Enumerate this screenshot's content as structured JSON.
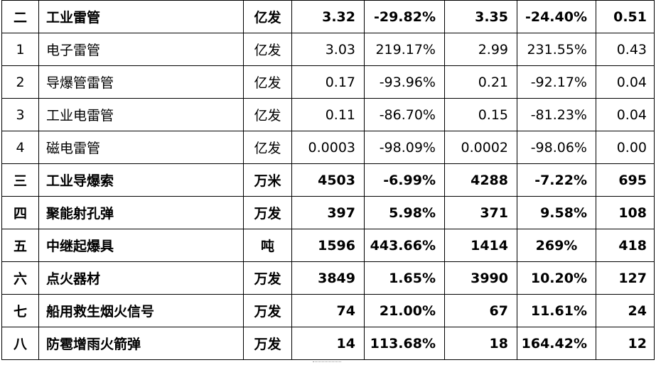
{
  "rows": [
    {
      "idx": "二",
      "name": "工业雷管",
      "unit": "亿发",
      "v1": "3.32",
      "g1": "-29.82%",
      "v2": "3.35",
      "g2": "-24.40%",
      "v3": "0.51",
      "bold": true
    },
    {
      "idx": "1",
      "name": "电子雷管",
      "unit": "亿发",
      "v1": "3.03",
      "g1": "219.17%",
      "v2": "2.99",
      "g2": "231.55%",
      "v3": "0.43",
      "bold": false
    },
    {
      "idx": "2",
      "name": "导爆管雷管",
      "unit": "亿发",
      "v1": "0.17",
      "g1": "-93.96%",
      "v2": "0.21",
      "g2": "-92.17%",
      "v3": "0.04",
      "bold": false
    },
    {
      "idx": "3",
      "name": "工业电雷管",
      "unit": "亿发",
      "v1": "0.11",
      "g1": "-86.70%",
      "v2": "0.15",
      "g2": "-81.23%",
      "v3": "0.04",
      "bold": false
    },
    {
      "idx": "4",
      "name": "磁电雷管",
      "unit": "亿发",
      "v1": "0.0003",
      "g1": "-98.09%",
      "v2": "0.0002",
      "g2": "-98.06%",
      "v3": "0.00",
      "bold": false
    },
    {
      "idx": "三",
      "name": "工业导爆索",
      "unit": "万米",
      "v1": "4503",
      "g1": "-6.99%",
      "v2": "4288",
      "g2": "-7.22%",
      "v3": "695",
      "bold": true
    },
    {
      "idx": "四",
      "name": "聚能射孔弹",
      "unit": "万发",
      "v1": "397",
      "g1": "5.98%",
      "v2": "371",
      "g2": "9.58%",
      "v3": "108",
      "bold": true
    },
    {
      "idx": "五",
      "name": "中继起爆具",
      "unit": "吨",
      "v1": "1596",
      "g1": "443.66%",
      "v2": "1414",
      "g2": "269%",
      "v3": "418",
      "bold": true,
      "centerG2": true
    },
    {
      "idx": "六",
      "name": "点火器材",
      "unit": "万发",
      "v1": "3849",
      "g1": "1.65%",
      "v2": "3990",
      "g2": "10.20%",
      "v3": "127",
      "bold": true
    },
    {
      "idx": "七",
      "name": "船用救生烟火信号",
      "unit": "万发",
      "v1": "74",
      "g1": "21.00%",
      "v2": "67",
      "g2": "11.61%",
      "v3": "24",
      "bold": true
    },
    {
      "idx": "八",
      "name": "防雹增雨火箭弹",
      "unit": "万发",
      "v1": "14",
      "g1": "113.68%",
      "v2": "18",
      "g2": "164.42%",
      "v3": "12",
      "bold": true
    }
  ]
}
